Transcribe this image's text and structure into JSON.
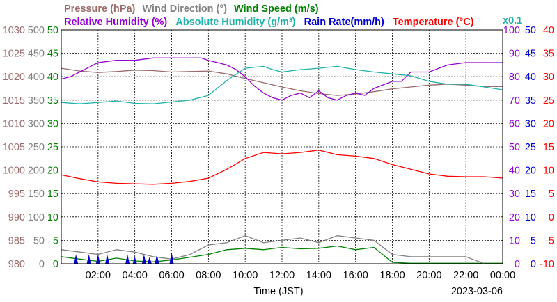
{
  "chart_data": {
    "type": "line",
    "date": "2023-03-06",
    "xlabel": "Time (JST)",
    "x_ticks": [
      "02:00",
      "04:00",
      "06:00",
      "08:00",
      "10:00",
      "12:00",
      "14:00",
      "16:00",
      "18:00",
      "20:00",
      "22:00",
      "00:00"
    ],
    "x_range_hours": [
      0,
      24
    ],
    "grid": true,
    "legend": {
      "row1": [
        {
          "text": "Pressure (hPa)",
          "color": "#9b6b6b"
        },
        {
          "text": "Wind Direction (°)",
          "color": "#808080"
        },
        {
          "text": "Wind Speed (m/s)",
          "color": "#008000"
        }
      ],
      "row2": [
        {
          "text": "Relative Humidity (%)",
          "color": "#9400d3"
        },
        {
          "text": "Absolute Humidity (g/m³)",
          "color": "#20b2aa"
        },
        {
          "text": "Rain Rate(mm/h)",
          "color": "#0000cd"
        },
        {
          "text": "Temperature (°C)",
          "color": "#ff0000"
        }
      ],
      "x01_note": {
        "text": "x0.1",
        "color": "#20b2aa"
      }
    },
    "axes": {
      "pressure": {
        "color": "#9b6b6b",
        "ticks": [
          980,
          985,
          990,
          995,
          1000,
          1005,
          1010,
          1015,
          1020,
          1025,
          1030
        ],
        "range": [
          980,
          1030
        ]
      },
      "wind_direction": {
        "color": "#808080",
        "ticks": [
          0,
          50,
          100,
          150,
          200,
          250,
          300,
          350,
          400,
          450,
          500
        ],
        "range": [
          0,
          500
        ]
      },
      "wind_speed": {
        "color": "#008000",
        "ticks": [
          0,
          5,
          10,
          15,
          20,
          25,
          30,
          35,
          40,
          45,
          50
        ],
        "range": [
          0,
          50
        ]
      },
      "humidity": {
        "color": "#9400d3",
        "ticks": [
          0,
          10,
          20,
          30,
          40,
          50,
          60,
          70,
          80,
          90,
          100
        ],
        "range": [
          0,
          100
        ]
      },
      "rain_rate": {
        "color": "#0000cd",
        "ticks": [
          0,
          5,
          10,
          15,
          20,
          25,
          30,
          35,
          40,
          45,
          50
        ],
        "range": [
          0,
          50
        ]
      },
      "temperature": {
        "color": "#ff0000",
        "ticks": [
          -10,
          -5,
          0,
          5,
          10,
          15,
          20,
          25,
          30,
          35,
          40
        ],
        "range": [
          -10,
          40
        ]
      }
    },
    "series": [
      {
        "name": "Pressure (hPa)",
        "axis": "pressure",
        "color": "#9b6b6b",
        "x": [
          0,
          1,
          2,
          3,
          4,
          5,
          6,
          7,
          8,
          9,
          10,
          11,
          12,
          13,
          14,
          15,
          16,
          17,
          18,
          19,
          20,
          21,
          22,
          23,
          24
        ],
        "y": [
          1021.8,
          1021.2,
          1020.9,
          1021.1,
          1021.4,
          1021.3,
          1021.0,
          1021.1,
          1021.2,
          1020.6,
          1019.6,
          1018.7,
          1017.8,
          1017.0,
          1016.4,
          1016.0,
          1016.3,
          1016.8,
          1017.4,
          1017.8,
          1018.2,
          1018.4,
          1018.2,
          1017.9,
          1017.9
        ]
      },
      {
        "name": "Relative Humidity (%)",
        "axis": "humidity",
        "color": "#9400d3",
        "x": [
          0,
          0.5,
          1,
          2,
          3,
          4,
          5,
          6,
          7,
          7.6,
          8,
          9,
          9.5,
          10,
          10.5,
          11,
          11.5,
          12,
          12.5,
          13,
          13.5,
          14,
          14.5,
          15,
          15.5,
          16,
          16.5,
          17,
          18,
          18.5,
          19,
          20,
          21,
          22,
          23,
          24
        ],
        "y": [
          79,
          80,
          82,
          86,
          87,
          87,
          88,
          88,
          88,
          88,
          87,
          85,
          83,
          80,
          76,
          73,
          71,
          70,
          72,
          73,
          71,
          74,
          71,
          70,
          72,
          73,
          72,
          75,
          78,
          78,
          82,
          82,
          85,
          86,
          86,
          86
        ]
      },
      {
        "name": "Absolute Humidity (g/m³)",
        "axis": "wind_direction",
        "color": "#20b2aa",
        "x": [
          0,
          1,
          2,
          3,
          4,
          5,
          6,
          7,
          8,
          9,
          10,
          11,
          11.5,
          12,
          13,
          14,
          15,
          16,
          17,
          18,
          19,
          20,
          21,
          22,
          23,
          24
        ],
        "y": [
          345,
          342,
          345,
          348,
          343,
          342,
          346,
          350,
          360,
          392,
          418,
          422,
          415,
          410,
          415,
          418,
          422,
          415,
          410,
          406,
          402,
          390,
          384,
          384,
          378,
          372
        ]
      },
      {
        "name": "Temperature (°C)",
        "axis": "temperature",
        "color": "#ff0000",
        "x": [
          0,
          1,
          2,
          3,
          4,
          5,
          6,
          7,
          8,
          9,
          10,
          11,
          12,
          13,
          14,
          15,
          16,
          17,
          18,
          19,
          20,
          21,
          22,
          23,
          24
        ],
        "y": [
          9.0,
          8.2,
          7.5,
          7.2,
          7.1,
          7.0,
          7.2,
          7.6,
          8.3,
          10.2,
          12.5,
          13.8,
          13.5,
          13.8,
          14.3,
          13.3,
          13.0,
          12.5,
          11.2,
          10.2,
          9.2,
          8.7,
          8.6,
          8.6,
          8.3
        ]
      },
      {
        "name": "Wind Speed (m/s)",
        "axis": "wind_speed",
        "color": "#008000",
        "x": [
          0,
          1,
          2,
          3,
          4,
          5,
          6,
          7,
          8,
          9,
          10,
          11,
          12,
          13,
          14,
          15,
          16,
          17,
          18,
          19,
          20,
          21,
          22,
          23,
          24
        ],
        "y": [
          1.5,
          1.0,
          0.5,
          1.2,
          0.6,
          0.4,
          0.8,
          1.4,
          2.0,
          3.0,
          3.3,
          3.0,
          3.5,
          3.2,
          3.3,
          3.8,
          3.0,
          3.5,
          0.3,
          0.1,
          0.1,
          0.1,
          0.1,
          0.1,
          0.1
        ]
      },
      {
        "name": "Wind Direction (°)",
        "axis": "wind_direction",
        "color": "#808080",
        "x": [
          0,
          1,
          2,
          3,
          4,
          5,
          6,
          7,
          8,
          9,
          10,
          11,
          12,
          13,
          14,
          15,
          16,
          17,
          18,
          19,
          20,
          21,
          22,
          23,
          24
        ],
        "y": [
          30,
          25,
          20,
          30,
          25,
          15,
          10,
          20,
          40,
          45,
          60,
          45,
          50,
          55,
          45,
          60,
          55,
          50,
          20,
          15,
          15,
          15,
          15,
          0,
          0
        ]
      },
      {
        "name": "Rain Rate(mm/h)",
        "axis": "rain_rate",
        "color": "#0000cd",
        "x": [
          0.8,
          1.5,
          2.0,
          2.5,
          3.6,
          4.0,
          4.5,
          4.8,
          5.2,
          6.0
        ],
        "y": [
          2,
          2,
          2,
          2,
          2,
          1.5,
          2,
          1.5,
          2,
          2.5
        ]
      }
    ]
  }
}
